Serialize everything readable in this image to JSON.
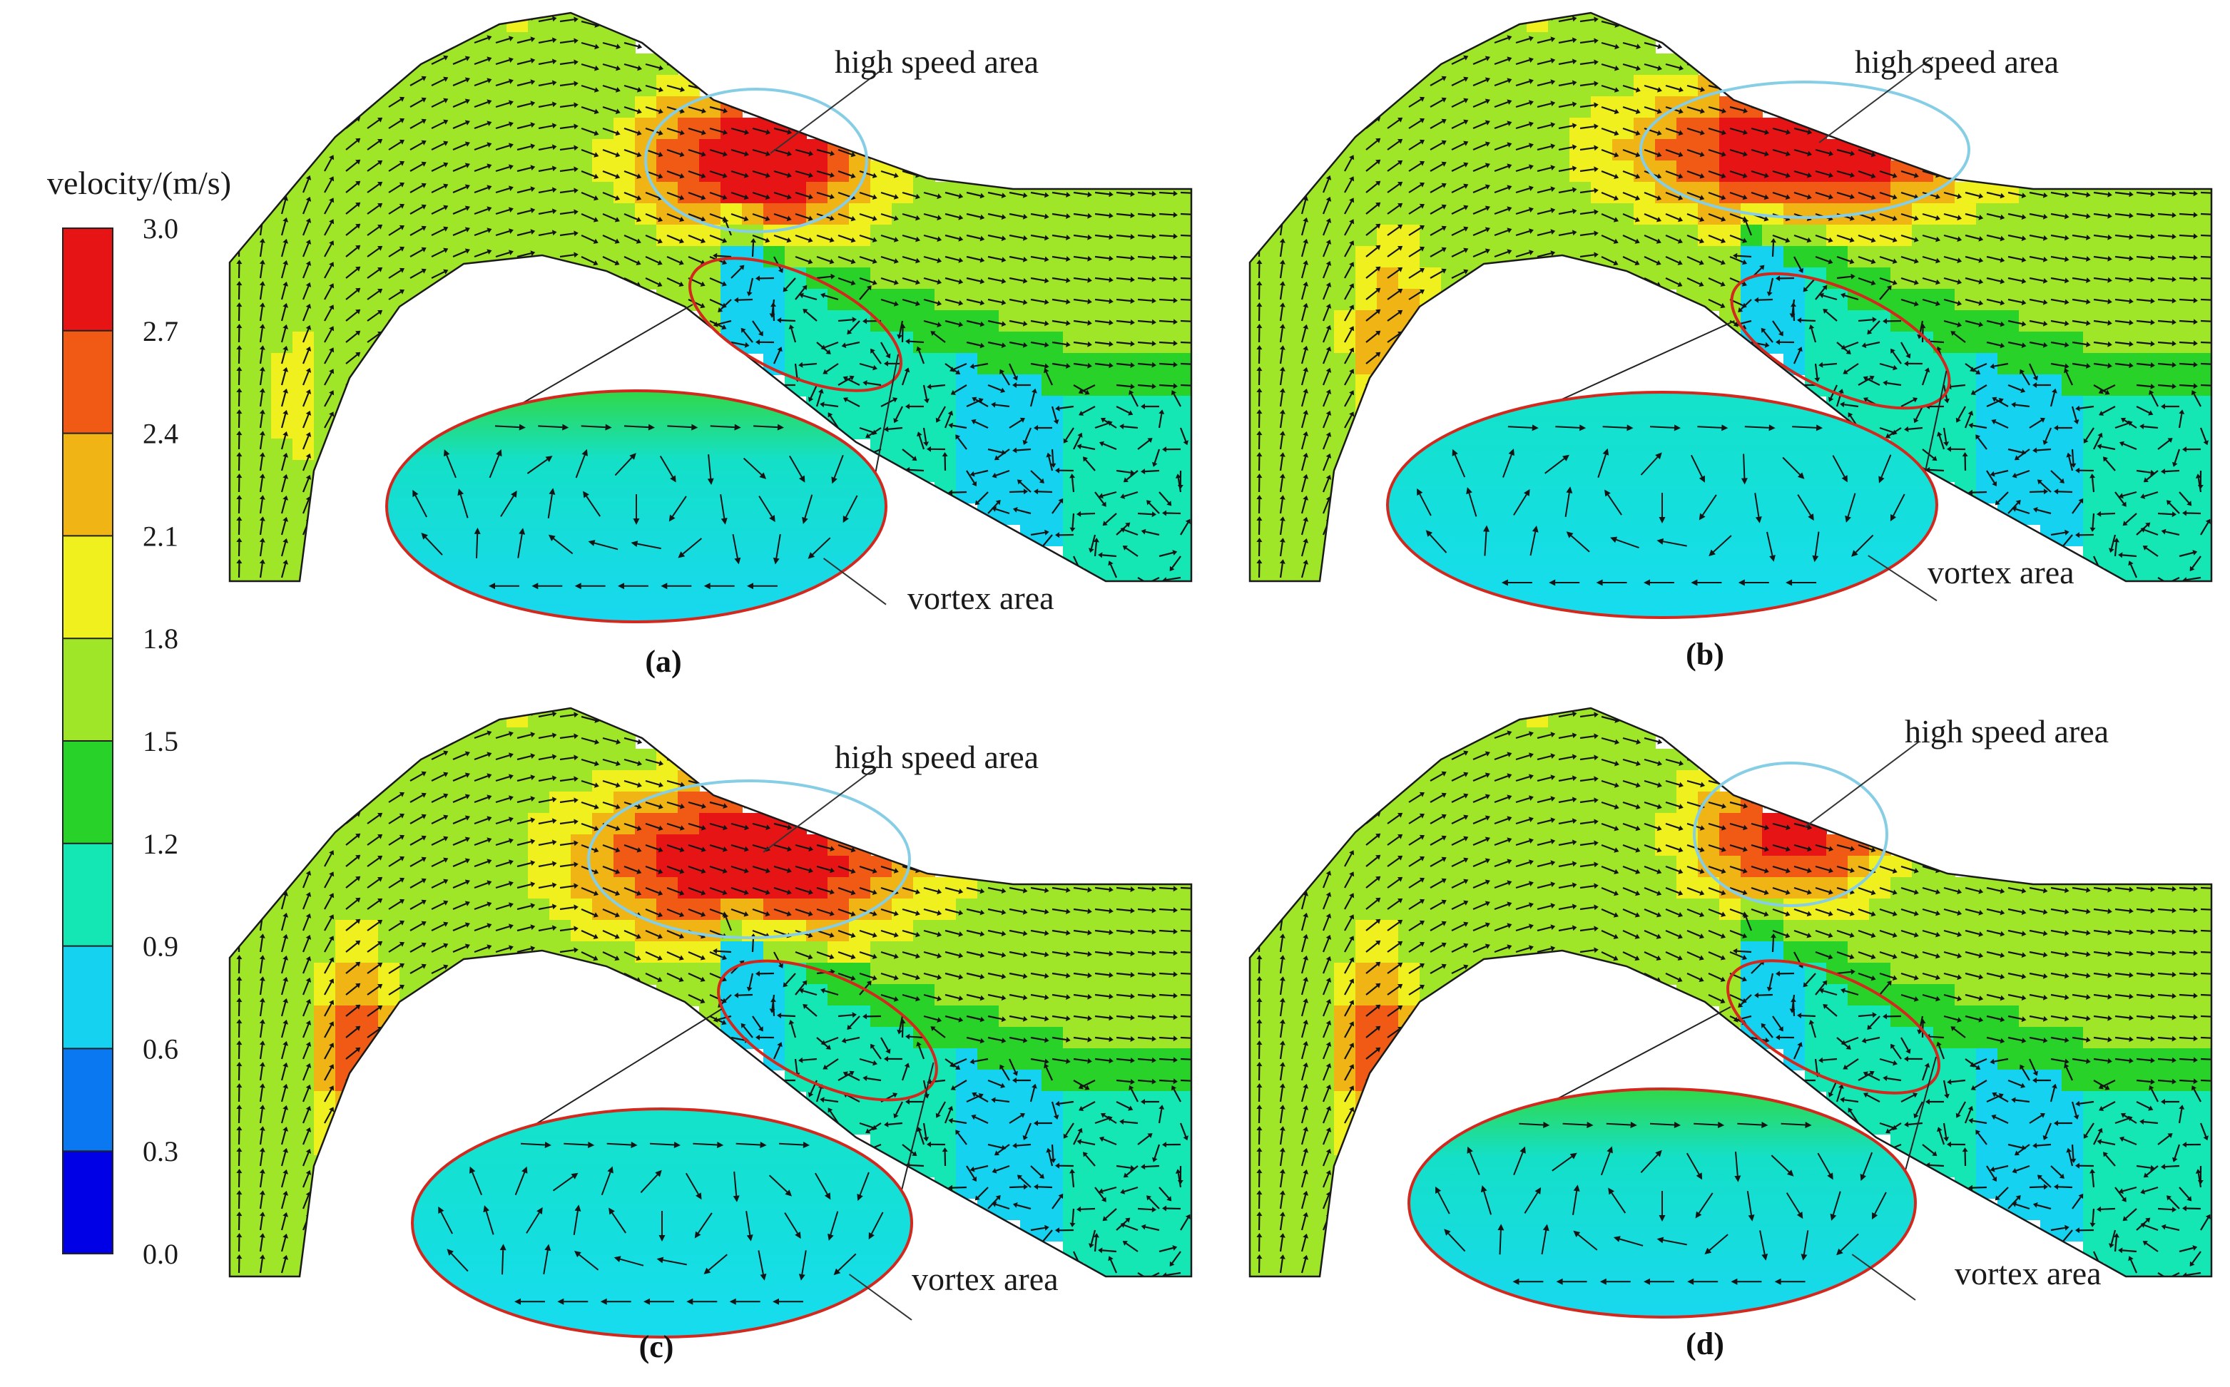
{
  "colorbar": {
    "title": "velocity/(m/s)",
    "min": 0.0,
    "max": 3.0,
    "ticks": [
      "3.0",
      "2.7",
      "2.4",
      "2.1",
      "1.8",
      "1.5",
      "1.2",
      "0.9",
      "0.6",
      "0.3",
      "0.0"
    ],
    "colormap": [
      "#0000e6",
      "#0a78f0",
      "#14d2f0",
      "#14e6b4",
      "#28d228",
      "#a0e628",
      "#f0f01e",
      "#f0b414",
      "#f05a14",
      "#e61414"
    ]
  },
  "colors": {
    "high_speed_outline": "#86cde6",
    "vortex_outline": "#d2281e",
    "domain_outline": "#1a1a1a",
    "vector_color": "#141414"
  },
  "panels": [
    {
      "label": "(a)",
      "high_speed_label": "high speed area",
      "vortex_label": "vortex area",
      "high_peak": 3.0,
      "jet_peak": 1.9
    },
    {
      "label": "(b)",
      "high_speed_label": "high speed area",
      "vortex_label": "vortex area",
      "high_peak": 3.0,
      "jet_peak": 2.4
    },
    {
      "label": "(c)",
      "high_speed_label": "high speed area",
      "vortex_label": "vortex area",
      "high_peak": 3.0,
      "jet_peak": 2.6
    },
    {
      "label": "(d)",
      "high_speed_label": "high speed area",
      "vortex_label": "vortex area",
      "high_peak": 2.8,
      "jet_peak": 2.6
    }
  ]
}
